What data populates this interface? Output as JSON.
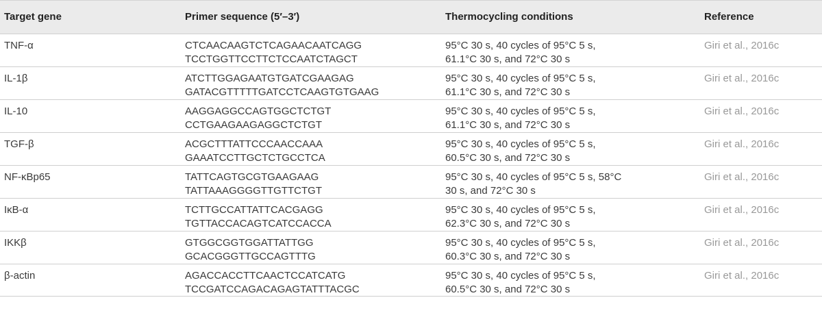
{
  "headers": {
    "gene": "Target gene",
    "primer": "Primer sequence (5′–3′)",
    "conditions": "Thermocycling conditions",
    "reference": "Reference"
  },
  "rows": [
    {
      "gene": "TNF-α",
      "primer1": "CTCAACAAGTCTCAGAACAATCAGG",
      "primer2": "TCCTGGTTCCTTCTCCAATCTAGCT",
      "cond1": "95°C 30 s, 40 cycles of 95°C 5 s,",
      "cond2": "61.1°C 30 s, and 72°C 30 s",
      "reference": "Giri et al., 2016c"
    },
    {
      "gene": "IL-1β",
      "primer1": "ATCTTGGAGAATGTGATCGAAGAG",
      "primer2": "GATACGTTTTTGATCCTCAAGTGTGAAG",
      "cond1": "95°C 30 s, 40 cycles of 95°C 5 s,",
      "cond2": "61.1°C 30 s, and 72°C 30 s",
      "reference": "Giri et al., 2016c"
    },
    {
      "gene": "IL-10",
      "primer1": "AAGGAGGCCAGTGGCTCTGT",
      "primer2": "CCTGAAGAAGAGGCTCTGT",
      "cond1": "95°C 30 s, 40 cycles of 95°C 5 s,",
      "cond2": "61.1°C 30 s, and 72°C 30 s",
      "reference": "Giri et al., 2016c"
    },
    {
      "gene": "TGF-β",
      "primer1": "ACGCTTTATTCCCAACCAAA",
      "primer2": "GAAATCCTTGCTCTGCCTCA",
      "cond1": "95°C 30 s, 40 cycles of 95°C 5 s,",
      "cond2": "60.5°C 30 s, and 72°C 30 s",
      "reference": "Giri et al., 2016c"
    },
    {
      "gene": "NF-κBp65",
      "primer1": "TATTCAGTGCGTGAAGAAG",
      "primer2": "TATTAAAGGGGTTGTTCTGT",
      "cond1": "95°C 30 s, 40 cycles of 95°C 5 s, 58°C",
      "cond2": "30 s, and 72°C 30 s",
      "reference": "Giri et al., 2016c"
    },
    {
      "gene": "IκB-α",
      "primer1": "TCTTGCCATTATTCACGAGG",
      "primer2": "TGTTACCACAGTCATCCACCA",
      "cond1": "95°C 30 s, 40 cycles of 95°C 5 s,",
      "cond2": "62.3°C 30 s, and 72°C 30 s",
      "reference": "Giri et al., 2016c"
    },
    {
      "gene": "IKKβ",
      "primer1": "GTGGCGGTGGATTATTGG",
      "primer2": "GCACGGGTTGCCAGTTTG",
      "cond1": "95°C 30 s, 40 cycles of 95°C 5 s,",
      "cond2": "60.3°C 30 s, and 72°C 30 s",
      "reference": "Giri et al., 2016c"
    },
    {
      "gene": "β-actin",
      "primer1": "AGACCACCTTCAACTCCATCATG",
      "primer2": "TCCGATCCAGACAGAGTATTTACGC",
      "cond1": "95°C 30 s, 40 cycles of 95°C 5 s,",
      "cond2": "60.5°C 30 s, and 72°C 30 s",
      "reference": "Giri et al., 2016c"
    }
  ]
}
